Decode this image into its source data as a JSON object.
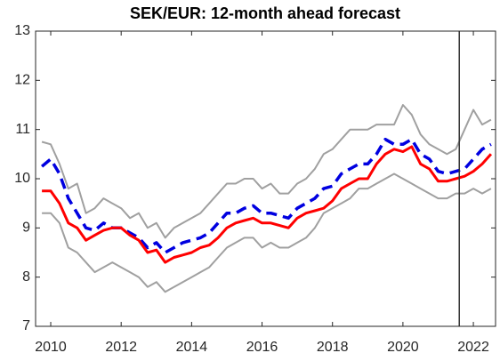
{
  "chart_data": {
    "type": "line",
    "title": "SEK/EUR: 12-month ahead forecast",
    "x": [
      2009.75,
      2010,
      2010.25,
      2010.5,
      2010.75,
      2011,
      2011.25,
      2011.5,
      2011.75,
      2012,
      2012.25,
      2012.5,
      2012.75,
      2013,
      2013.25,
      2013.5,
      2013.75,
      2014,
      2014.25,
      2014.5,
      2014.75,
      2015,
      2015.25,
      2015.5,
      2015.75,
      2016,
      2016.25,
      2016.5,
      2016.75,
      2017,
      2017.25,
      2017.5,
      2017.75,
      2018,
      2018.25,
      2018.5,
      2018.75,
      2019,
      2019.25,
      2019.5,
      2019.75,
      2020,
      2020.25,
      2020.5,
      2020.75,
      2021,
      2021.25,
      2021.5,
      2021.75,
      2022,
      2022.25,
      2022.5
    ],
    "series": [
      {
        "color": "#a0a0a0",
        "dash": false,
        "width": 2,
        "values": [
          10.75,
          10.7,
          10.3,
          9.8,
          9.9,
          9.3,
          9.4,
          9.6,
          9.5,
          9.4,
          9.2,
          9.3,
          9.0,
          9.1,
          8.8,
          9.0,
          9.1,
          9.2,
          9.3,
          9.5,
          9.7,
          9.9,
          9.9,
          10.0,
          10.0,
          9.8,
          9.9,
          9.7,
          9.7,
          9.9,
          10.0,
          10.2,
          10.5,
          10.6,
          10.8,
          11.0,
          11.0,
          11.0,
          11.1,
          11.1,
          11.1,
          11.5,
          11.3,
          10.9,
          10.7,
          10.6,
          10.5,
          10.6,
          11.0,
          11.4,
          11.1,
          11.2
        ]
      },
      {
        "color": "#a0a0a0",
        "dash": false,
        "width": 2,
        "values": [
          9.3,
          9.3,
          9.1,
          8.6,
          8.5,
          8.3,
          8.1,
          8.2,
          8.3,
          8.2,
          8.1,
          8.0,
          7.8,
          7.9,
          7.7,
          7.8,
          7.9,
          8.0,
          8.1,
          8.2,
          8.4,
          8.6,
          8.7,
          8.8,
          8.8,
          8.6,
          8.7,
          8.6,
          8.6,
          8.7,
          8.8,
          9.0,
          9.3,
          9.4,
          9.5,
          9.6,
          9.8,
          9.8,
          9.9,
          10.0,
          10.1,
          10.0,
          9.9,
          9.8,
          9.7,
          9.6,
          9.6,
          9.7,
          9.7,
          9.8,
          9.7,
          9.8
        ]
      },
      {
        "color": "#0000e0",
        "dash": true,
        "width": 3.5,
        "values": [
          10.25,
          10.4,
          10.1,
          9.6,
          9.3,
          9.0,
          8.95,
          9.1,
          9.0,
          9.0,
          8.9,
          8.8,
          8.6,
          8.7,
          8.5,
          8.6,
          8.7,
          8.75,
          8.8,
          8.9,
          9.1,
          9.3,
          9.3,
          9.4,
          9.45,
          9.3,
          9.3,
          9.25,
          9.2,
          9.4,
          9.5,
          9.6,
          9.8,
          9.85,
          10.1,
          10.2,
          10.3,
          10.3,
          10.5,
          10.8,
          10.7,
          10.7,
          10.8,
          10.5,
          10.4,
          10.15,
          10.1,
          10.15,
          10.2,
          10.4,
          10.6,
          10.7
        ]
      },
      {
        "color": "#ff0000",
        "dash": false,
        "width": 3,
        "values": [
          9.75,
          9.75,
          9.5,
          9.1,
          9.0,
          8.75,
          8.85,
          8.95,
          9.0,
          9.0,
          8.85,
          8.75,
          8.5,
          8.55,
          8.3,
          8.4,
          8.45,
          8.5,
          8.6,
          8.65,
          8.8,
          9.0,
          9.1,
          9.15,
          9.2,
          9.1,
          9.1,
          9.05,
          9.0,
          9.2,
          9.3,
          9.35,
          9.4,
          9.55,
          9.8,
          9.9,
          10.0,
          10.0,
          10.3,
          10.5,
          10.6,
          10.55,
          10.65,
          10.3,
          10.2,
          9.95,
          9.95,
          10.0,
          10.05,
          10.15,
          10.3,
          10.5
        ]
      }
    ],
    "vline": 2021.6,
    "xlim": [
      2009.57,
      2022.63
    ],
    "xticks": [
      2010,
      2012,
      2014,
      2016,
      2018,
      2020,
      2022
    ],
    "ylim": [
      7,
      13
    ],
    "yticks": [
      7,
      8,
      9,
      10,
      11,
      12,
      13
    ],
    "grid": false
  }
}
